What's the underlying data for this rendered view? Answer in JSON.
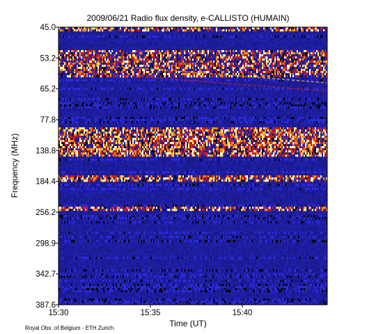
{
  "chart_data": {
    "type": "heatmap",
    "title": "2009/06/21  Radio flux density, e-CALLISTO (HUMAIN)",
    "xlabel": "Time (UT)",
    "ylabel": "Frequency (MHz)",
    "x_ticks": [
      "15:30",
      "15:35",
      "15:40"
    ],
    "x_range": [
      "15:30",
      "15:44:30"
    ],
    "y_ticks": [
      "45.0",
      "53.2",
      "65.2",
      "77.8",
      "138.8",
      "184.4",
      "256.2",
      "298.9",
      "342.7",
      "387.6"
    ],
    "y_range": [
      45.0,
      387.6
    ],
    "y_inverted": true,
    "colormap": [
      "#000000",
      "#1a1a8c",
      "#2a2ad8",
      "#c02020",
      "#ff8c10",
      "#ffff80",
      "#ffffff"
    ],
    "emission_bands": [
      {
        "from": "48",
        "to": "65.2",
        "intensity": "medium-high",
        "drifting_features": true
      },
      {
        "from": "120",
        "to": "145",
        "intensity": "high"
      },
      {
        "from": "256.2",
        "to": "262",
        "intensity": "medium"
      }
    ],
    "credit": "Royal Obs. of Belgium - ETH Zurich"
  }
}
